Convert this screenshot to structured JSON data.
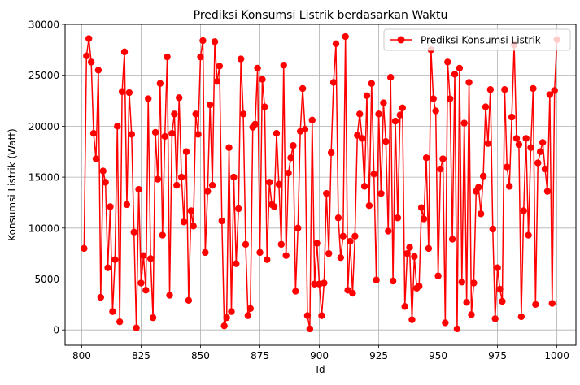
{
  "chart_data": {
    "type": "line",
    "title": "Prediksi Konsumsi Listrik berdasarkan Waktu",
    "xlabel": "Id",
    "ylabel": "Konsumsi Listrik (Watt)",
    "xlim": [
      793,
      1008
    ],
    "ylim": [
      -1500,
      30000
    ],
    "grid": true,
    "legend_position": "top-right",
    "x_ticks": [
      800,
      825,
      850,
      875,
      900,
      925,
      950,
      975,
      1000
    ],
    "y_ticks": [
      0,
      5000,
      10000,
      15000,
      20000,
      25000,
      30000
    ],
    "series": [
      {
        "name": "Prediksi Konsumsi Listrik",
        "color": "#ff0000",
        "marker": "circle",
        "x": [
          801,
          802,
          803,
          804,
          805,
          806,
          807,
          808,
          809,
          810,
          811,
          812,
          813,
          814,
          815,
          816,
          817,
          818,
          819,
          820,
          821,
          822,
          823,
          824,
          825,
          826,
          827,
          828,
          829,
          830,
          831,
          832,
          833,
          834,
          835,
          836,
          837,
          838,
          839,
          840,
          841,
          842,
          843,
          844,
          845,
          846,
          847,
          848,
          849,
          850,
          851,
          852,
          853,
          854,
          855,
          856,
          857,
          858,
          859,
          860,
          861,
          862,
          863,
          864,
          865,
          866,
          867,
          868,
          869,
          870,
          871,
          872,
          873,
          874,
          875,
          876,
          877,
          878,
          879,
          880,
          881,
          882,
          883,
          884,
          885,
          886,
          887,
          888,
          889,
          890,
          891,
          892,
          893,
          894,
          895,
          896,
          897,
          898,
          899,
          900,
          901,
          902,
          903,
          904,
          905,
          906,
          907,
          908,
          909,
          910,
          911,
          912,
          913,
          914,
          915,
          916,
          917,
          918,
          919,
          920,
          921,
          922,
          923,
          924,
          925,
          926,
          927,
          928,
          929,
          930,
          931,
          932,
          933,
          934,
          935,
          936,
          937,
          938,
          939,
          940,
          941,
          942,
          943,
          944,
          945,
          946,
          947,
          948,
          949,
          950,
          951,
          952,
          953,
          954,
          955,
          956,
          957,
          958,
          959,
          960,
          961,
          962,
          963,
          964,
          965,
          966,
          967,
          968,
          969,
          970,
          971,
          972,
          973,
          974,
          975,
          976,
          977,
          978,
          979,
          980,
          981,
          982,
          983,
          984,
          985,
          986,
          987,
          988,
          989,
          990,
          991,
          992,
          993,
          994,
          995,
          996,
          997,
          998,
          999,
          1000
        ],
        "y": [
          8000,
          26900,
          28600,
          26300,
          19300,
          16800,
          25500,
          3200,
          15600,
          14500,
          6100,
          12100,
          1800,
          6900,
          20000,
          800,
          23400,
          27300,
          12300,
          23300,
          19200,
          9600,
          200,
          13800,
          4600,
          7300,
          3900,
          22700,
          7000,
          1200,
          19400,
          14800,
          24200,
          9300,
          19000,
          26800,
          3400,
          19300,
          21200,
          14200,
          22800,
          15000,
          10600,
          17500,
          2900,
          11700,
          10200,
          21200,
          19200,
          26800,
          28400,
          7600,
          13600,
          22100,
          14200,
          28300,
          24400,
          25900,
          10700,
          400,
          1200,
          17900,
          1800,
          15000,
          6500,
          11900,
          26600,
          21200,
          8400,
          1400,
          2100,
          19900,
          20200,
          25700,
          7600,
          24600,
          21900,
          6900,
          14500,
          12300,
          12100,
          19300,
          14300,
          8400,
          26000,
          7300,
          15400,
          16900,
          18100,
          3800,
          10000,
          19500,
          23700,
          19700,
          1400,
          100,
          20600,
          4500,
          8500,
          4500,
          1400,
          4600,
          13400,
          7500,
          17400,
          24300,
          28100,
          11000,
          7100,
          9200,
          28800,
          3900,
          8700,
          3600,
          9200,
          19100,
          21200,
          18800,
          14100,
          23000,
          12200,
          24200,
          15300,
          4900,
          21200,
          13400,
          22300,
          18500,
          9700,
          24800,
          4800,
          20500,
          11000,
          21100,
          21800,
          2300,
          7500,
          8100,
          1000,
          7200,
          4100,
          4300,
          12000,
          10900,
          16900,
          8000,
          27500,
          22700,
          21500,
          5300,
          15800,
          16800,
          700,
          26300,
          22700,
          8900,
          25100,
          100,
          25700,
          4700,
          20300,
          2700,
          24300,
          1500,
          4600,
          13600,
          14000,
          11400,
          15100,
          21900,
          18300,
          23600,
          9900,
          1100,
          6100,
          4000,
          2800,
          23600,
          16000,
          14100,
          20900,
          28000,
          18800,
          18200,
          1300,
          11700,
          18800,
          9300,
          17900,
          23700,
          2500,
          16400,
          17500,
          18400,
          15800,
          13600,
          23100,
          2600,
          23500,
          28500
        ]
      }
    ]
  }
}
